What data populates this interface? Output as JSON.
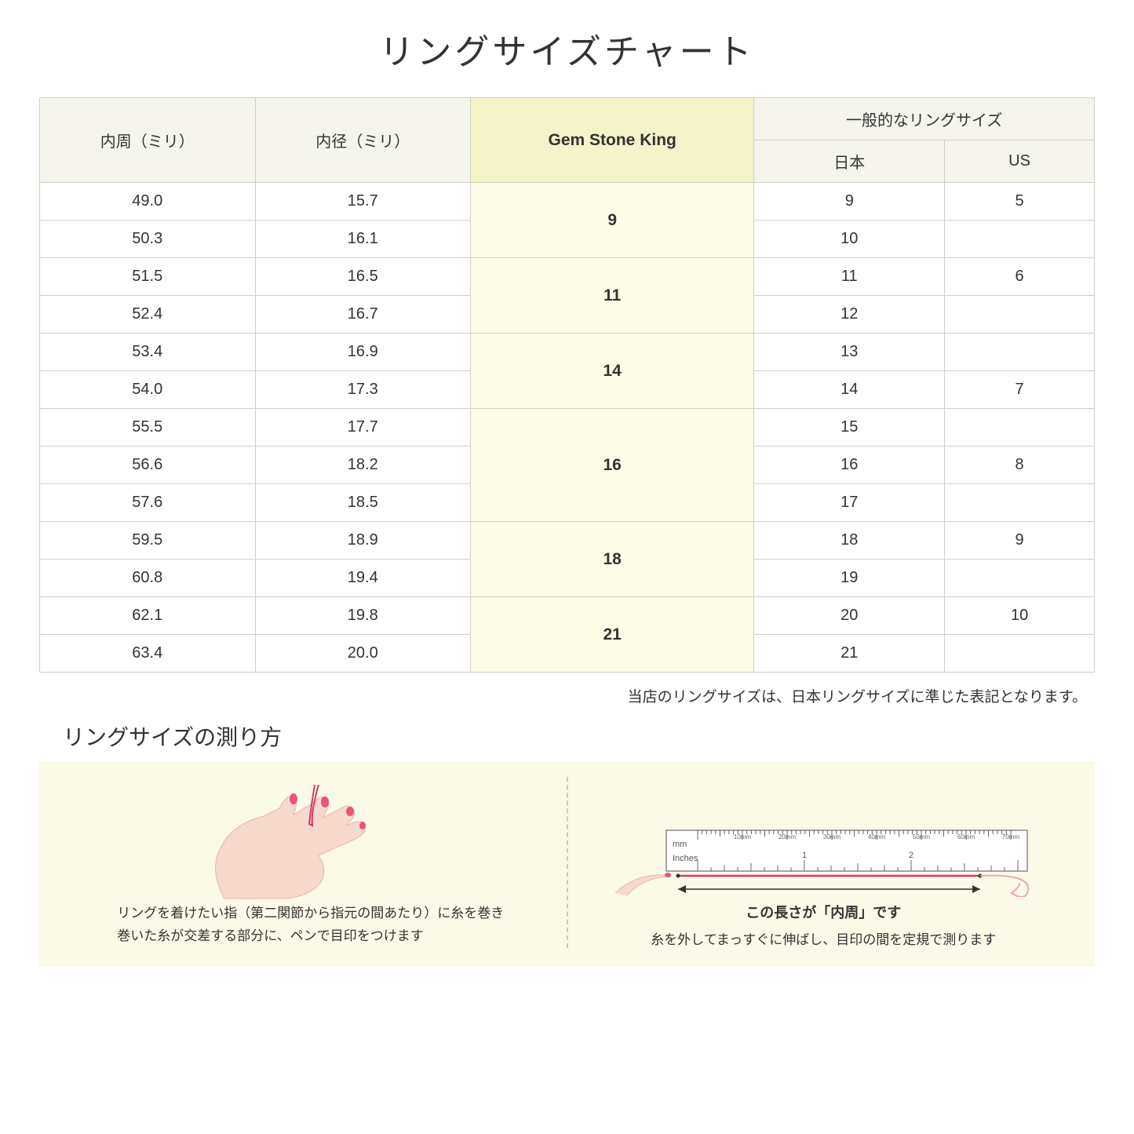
{
  "title": "リングサイズチャート",
  "table": {
    "headers": {
      "circumference": "内周（ミリ）",
      "diameter": "内径（ミリ）",
      "gsk": "Gem Stone King",
      "general": "一般的なリングサイズ",
      "japan": "日本",
      "us": "US"
    },
    "groups": [
      {
        "gsk": "9",
        "rows": [
          {
            "c": "49.0",
            "d": "15.7",
            "jp": "9",
            "us": "5"
          },
          {
            "c": "50.3",
            "d": "16.1",
            "jp": "10",
            "us": ""
          }
        ]
      },
      {
        "gsk": "11",
        "rows": [
          {
            "c": "51.5",
            "d": "16.5",
            "jp": "11",
            "us": "6"
          },
          {
            "c": "52.4",
            "d": "16.7",
            "jp": "12",
            "us": ""
          }
        ]
      },
      {
        "gsk": "14",
        "rows": [
          {
            "c": "53.4",
            "d": "16.9",
            "jp": "13",
            "us": ""
          },
          {
            "c": "54.0",
            "d": "17.3",
            "jp": "14",
            "us": "7"
          }
        ]
      },
      {
        "gsk": "16",
        "rows": [
          {
            "c": "55.5",
            "d": "17.7",
            "jp": "15",
            "us": ""
          },
          {
            "c": "56.6",
            "d": "18.2",
            "jp": "16",
            "us": "8"
          },
          {
            "c": "57.6",
            "d": "18.5",
            "jp": "17",
            "us": ""
          }
        ]
      },
      {
        "gsk": "18",
        "rows": [
          {
            "c": "59.5",
            "d": "18.9",
            "jp": "18",
            "us": "9"
          },
          {
            "c": "60.8",
            "d": "19.4",
            "jp": "19",
            "us": ""
          }
        ]
      },
      {
        "gsk": "21",
        "rows": [
          {
            "c": "62.1",
            "d": "19.8",
            "jp": "20",
            "us": "10"
          },
          {
            "c": "63.4",
            "d": "20.0",
            "jp": "21",
            "us": ""
          }
        ]
      }
    ]
  },
  "note": "当店のリングサイズは、日本リングサイズに準じた表記となります。",
  "measure": {
    "title": "リングサイズの測り方",
    "left_text": "リングを着けたい指（第二関節から指元の間あたり）に糸を巻き\n巻いた糸が交差する部分に、ペンで目印をつけます",
    "right_label": "この長さが「内周」です",
    "right_text": "糸を外してまっすぐに伸ばし、目印の間を定規で測ります",
    "ruler": {
      "mm_label": "mm",
      "inches_label": "Inches",
      "mm_marks": [
        "10mm",
        "20mm",
        "30mm",
        "40mm",
        "50mm",
        "60mm",
        "70mm"
      ],
      "inch_digits": [
        "1",
        "2"
      ]
    }
  },
  "colors": {
    "header_bg": "#f5f5ed",
    "gsk_header_bg": "#f4f4c8",
    "gsk_cell_bg": "#fcfce8",
    "border": "#d0d0c8",
    "measure_bg": "#fbf9e8",
    "hand": "#f6d9cd",
    "nail": "#e8547a",
    "thread": "#d43b5a",
    "ruler_border": "#888"
  }
}
